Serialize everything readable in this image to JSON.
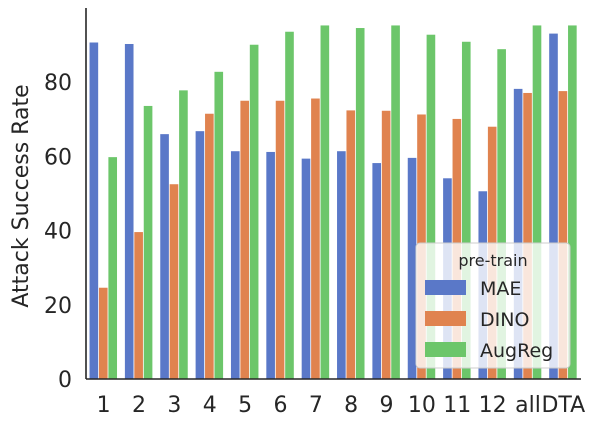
{
  "chart_data": {
    "type": "bar",
    "title": "",
    "xlabel": "",
    "ylabel": "Attack Success Rate",
    "ylim": [
      0,
      100
    ],
    "yticks": [
      0,
      20,
      40,
      60,
      80
    ],
    "grid": false,
    "legend": {
      "title": "pre-train",
      "placement": "lower-right"
    },
    "categories": [
      "1",
      "2",
      "3",
      "4",
      "5",
      "6",
      "7",
      "8",
      "9",
      "10",
      "11",
      "12",
      "all",
      "DTA"
    ],
    "series": [
      {
        "name": "MAE",
        "color": "#5A78C8",
        "values": [
          90.7,
          90.3,
          66.0,
          66.8,
          61.4,
          61.2,
          59.4,
          61.4,
          58.2,
          59.6,
          54.1,
          50.6,
          78.2,
          93.1
        ]
      },
      {
        "name": "DINO",
        "color": "#E0834F",
        "values": [
          24.6,
          39.6,
          52.5,
          71.5,
          75.0,
          75.0,
          75.6,
          72.4,
          72.3,
          71.3,
          70.1,
          68.0,
          77.1,
          77.6
        ]
      },
      {
        "name": "AugReg",
        "color": "#6CC66A",
        "values": [
          59.8,
          73.6,
          77.8,
          82.8,
          90.1,
          93.6,
          95.3,
          94.6,
          95.3,
          92.8,
          90.9,
          88.9,
          95.3,
          95.3
        ]
      }
    ]
  }
}
